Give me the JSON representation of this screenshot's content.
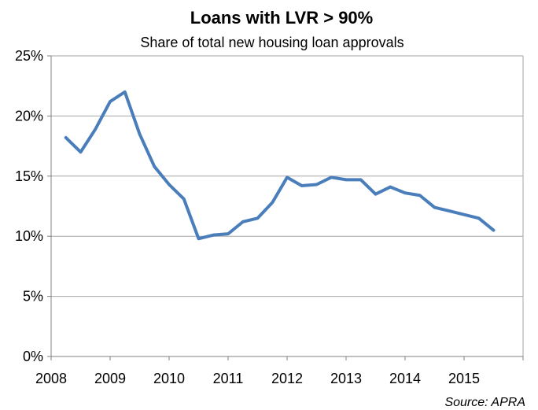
{
  "chart_data": {
    "type": "line",
    "title": "Loans with LVR > 90%",
    "subtitle": "Share of total new housing loan approvals",
    "source": "Source: APRA",
    "xlabel": "",
    "ylabel": "",
    "xlim": [
      2008,
      2016
    ],
    "ylim": [
      0,
      25
    ],
    "x_ticks": [
      2008,
      2009,
      2010,
      2011,
      2012,
      2013,
      2014,
      2015
    ],
    "x_tick_labels": [
      "2008",
      "2009",
      "2010",
      "2011",
      "2012",
      "2013",
      "2014",
      "2015"
    ],
    "y_ticks": [
      0,
      5,
      10,
      15,
      20,
      25
    ],
    "y_tick_labels": [
      "0%",
      "5%",
      "10%",
      "15%",
      "20%",
      "25%"
    ],
    "grid": true,
    "legend": "none",
    "line_color": "#4a7ebb",
    "series": [
      {
        "x": [
          2008.25,
          2008.5,
          2008.75,
          2009.0,
          2009.25,
          2009.5,
          2009.75,
          2010.0,
          2010.25,
          2010.5,
          2010.75,
          2011.0,
          2011.25,
          2011.5,
          2011.75,
          2012.0,
          2012.25,
          2012.5,
          2012.75,
          2013.0,
          2013.25,
          2013.5,
          2013.75,
          2014.0,
          2014.25,
          2014.5,
          2014.75,
          2015.0,
          2015.25,
          2015.5
        ],
        "values": [
          18.2,
          17.0,
          18.9,
          21.2,
          22.0,
          18.5,
          15.8,
          14.3,
          13.1,
          9.8,
          10.1,
          10.2,
          11.2,
          11.5,
          12.8,
          14.9,
          14.2,
          14.3,
          14.9,
          14.7,
          14.7,
          13.5,
          14.1,
          13.6,
          13.4,
          12.4,
          12.1,
          11.8,
          11.5,
          10.5
        ]
      }
    ]
  }
}
